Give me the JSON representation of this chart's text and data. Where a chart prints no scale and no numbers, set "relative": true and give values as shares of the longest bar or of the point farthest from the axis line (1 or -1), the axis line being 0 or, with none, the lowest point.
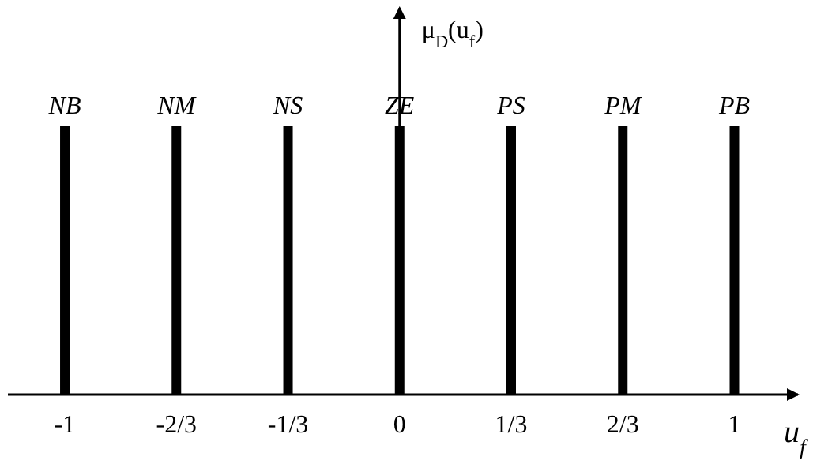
{
  "chart_data": {
    "type": "bar",
    "relative": true,
    "xlabel": "u$_{f}$",
    "ylabel": "μ$_{D}$(u$_{f}$)",
    "x": [
      -1,
      -0.6667,
      -0.3333,
      0,
      0.3333,
      0.6667,
      1
    ],
    "values": [
      1,
      1,
      1,
      1,
      1,
      1,
      1
    ],
    "color": "#000000",
    "xlim": [
      -1.17,
      1.19
    ],
    "xticks": [
      -1,
      {
        "value": -0.6667,
        "label": "-2/3"
      },
      {
        "value": -0.3333,
        "label": "-1/3"
      },
      0,
      {
        "value": 0.3333,
        "label": "1/3"
      },
      {
        "value": 0.6667,
        "label": "2/3"
      },
      1
    ],
    "annotations": [
      {
        "text": "NB",
        "x": -1,
        "y": 1
      },
      {
        "text": "NM",
        "x": -0.6667,
        "y": 1
      },
      {
        "text": "NS",
        "x": -0.3333,
        "y": 1
      },
      {
        "text": "ZE",
        "x": 0,
        "y": 1
      },
      {
        "text": "PS",
        "x": 0.3333,
        "y": 1
      },
      {
        "text": "PM",
        "x": 0.6667,
        "y": 1
      },
      {
        "text": "PB",
        "x": 1,
        "y": 1
      }
    ]
  }
}
